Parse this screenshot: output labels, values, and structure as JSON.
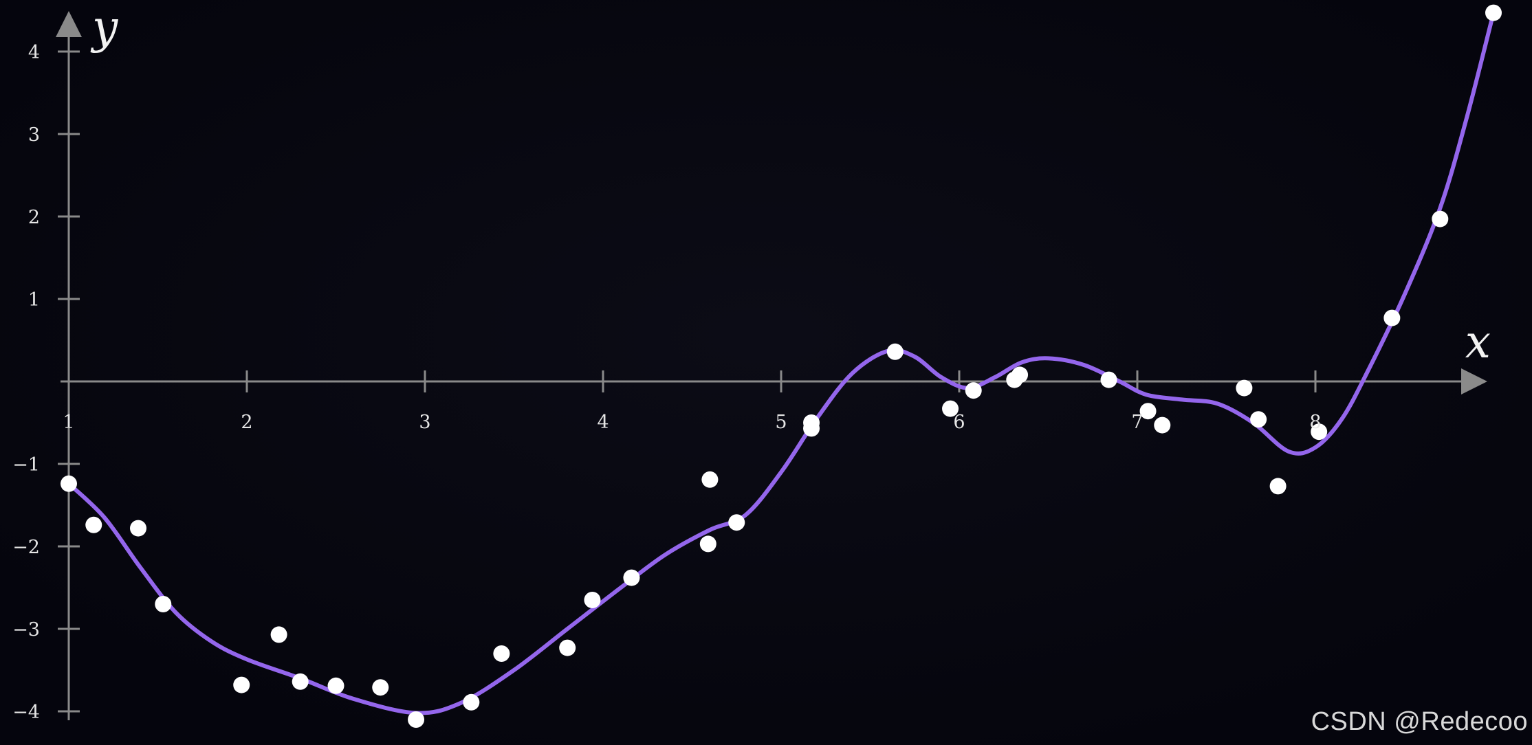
{
  "chart_data": {
    "type": "scatter",
    "xlabel": "x",
    "ylabel": "y",
    "xlim": [
      1,
      9
    ],
    "ylim": [
      -4,
      4.2
    ],
    "x_ticks": [
      1,
      2,
      3,
      4,
      5,
      6,
      7,
      8
    ],
    "x_tick_labels": [
      "1",
      "2",
      "3",
      "4",
      "5",
      "6",
      "7",
      "8"
    ],
    "y_ticks": [
      -4,
      -3,
      -2,
      -1,
      1,
      2,
      3,
      4
    ],
    "y_tick_labels": [
      "−4",
      "−3",
      "−2",
      "−1",
      "1",
      "2",
      "3",
      "4"
    ],
    "grid": false,
    "colors": {
      "background": "#05050d",
      "axis": "#8a8a8a",
      "curve": "#9466ec",
      "points": "#ffffff"
    },
    "series": [
      {
        "type": "scatter",
        "points": [
          [
            1.0,
            -1.24
          ],
          [
            1.14,
            -1.74
          ],
          [
            1.39,
            -1.78
          ],
          [
            1.53,
            -2.7
          ],
          [
            1.97,
            -3.68
          ],
          [
            2.18,
            -3.07
          ],
          [
            2.3,
            -3.64
          ],
          [
            2.5,
            -3.69
          ],
          [
            2.75,
            -3.71
          ],
          [
            2.95,
            -4.1
          ],
          [
            3.26,
            -3.89
          ],
          [
            3.43,
            -3.3
          ],
          [
            3.8,
            -3.23
          ],
          [
            3.94,
            -2.65
          ],
          [
            4.16,
            -2.38
          ],
          [
            4.59,
            -1.97
          ],
          [
            4.6,
            -1.19
          ],
          [
            4.75,
            -1.71
          ],
          [
            5.17,
            -0.57
          ],
          [
            5.17,
            -0.5
          ],
          [
            5.64,
            0.36
          ],
          [
            5.95,
            -0.33
          ],
          [
            6.08,
            -0.11
          ],
          [
            6.31,
            0.02
          ],
          [
            6.34,
            0.08
          ],
          [
            6.84,
            0.02
          ],
          [
            7.06,
            -0.36
          ],
          [
            7.14,
            -0.53
          ],
          [
            7.6,
            -0.08
          ],
          [
            7.68,
            -0.46
          ],
          [
            7.79,
            -1.27
          ],
          [
            8.02,
            -0.61
          ],
          [
            8.43,
            0.77
          ],
          [
            8.7,
            1.97
          ],
          [
            9.0,
            4.47
          ]
        ]
      },
      {
        "type": "line",
        "points": [
          [
            1.0,
            -1.24
          ],
          [
            1.2,
            -1.65
          ],
          [
            1.4,
            -2.25
          ],
          [
            1.6,
            -2.8
          ],
          [
            1.8,
            -3.15
          ],
          [
            2.0,
            -3.37
          ],
          [
            2.3,
            -3.6
          ],
          [
            2.6,
            -3.85
          ],
          [
            2.95,
            -4.02
          ],
          [
            3.2,
            -3.9
          ],
          [
            3.5,
            -3.5
          ],
          [
            3.8,
            -3.0
          ],
          [
            4.1,
            -2.5
          ],
          [
            4.35,
            -2.1
          ],
          [
            4.6,
            -1.8
          ],
          [
            4.8,
            -1.62
          ],
          [
            5.0,
            -1.1
          ],
          [
            5.2,
            -0.45
          ],
          [
            5.4,
            0.1
          ],
          [
            5.6,
            0.37
          ],
          [
            5.75,
            0.3
          ],
          [
            5.9,
            0.05
          ],
          [
            6.05,
            -0.08
          ],
          [
            6.2,
            0.05
          ],
          [
            6.35,
            0.23
          ],
          [
            6.5,
            0.28
          ],
          [
            6.7,
            0.2
          ],
          [
            6.9,
            0.0
          ],
          [
            7.05,
            -0.16
          ],
          [
            7.25,
            -0.22
          ],
          [
            7.45,
            -0.27
          ],
          [
            7.65,
            -0.5
          ],
          [
            7.85,
            -0.85
          ],
          [
            8.0,
            -0.8
          ],
          [
            8.15,
            -0.45
          ],
          [
            8.3,
            0.15
          ],
          [
            8.5,
            1.05
          ],
          [
            8.7,
            2.1
          ],
          [
            8.85,
            3.2
          ],
          [
            9.0,
            4.47
          ]
        ]
      }
    ]
  },
  "watermark": "CSDN @Redecoo"
}
